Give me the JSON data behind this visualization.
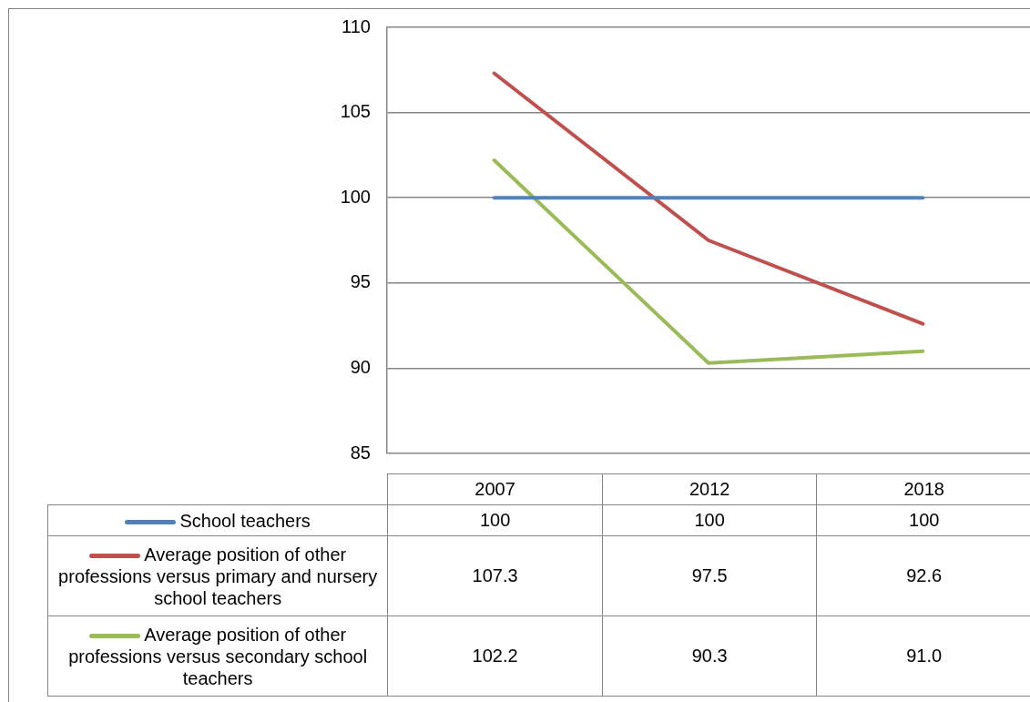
{
  "chart_data": {
    "type": "line",
    "categories": [
      "2007",
      "2012",
      "2018"
    ],
    "series": [
      {
        "name": "School teachers",
        "color": "#4f81bd",
        "values": [
          100,
          100,
          100
        ],
        "value_labels": [
          "100",
          "100",
          "100"
        ]
      },
      {
        "name": "Average position of other professions versus primary and nursery school teachers",
        "color": "#c0504d",
        "values": [
          107.3,
          97.5,
          92.6
        ],
        "value_labels": [
          "107.3",
          "97.5",
          "92.6"
        ]
      },
      {
        "name": "Average position of other professions versus secondary school teachers",
        "color": "#9bbb59",
        "values": [
          102.2,
          90.3,
          91.0
        ],
        "value_labels": [
          "102.2",
          "90.3",
          "91.0"
        ]
      }
    ],
    "ylim": [
      85,
      110
    ],
    "yticks": [
      85,
      90,
      95,
      100,
      105,
      110
    ],
    "grid": "y",
    "legend": "bottom",
    "marker": "none",
    "line_style": "solid"
  }
}
